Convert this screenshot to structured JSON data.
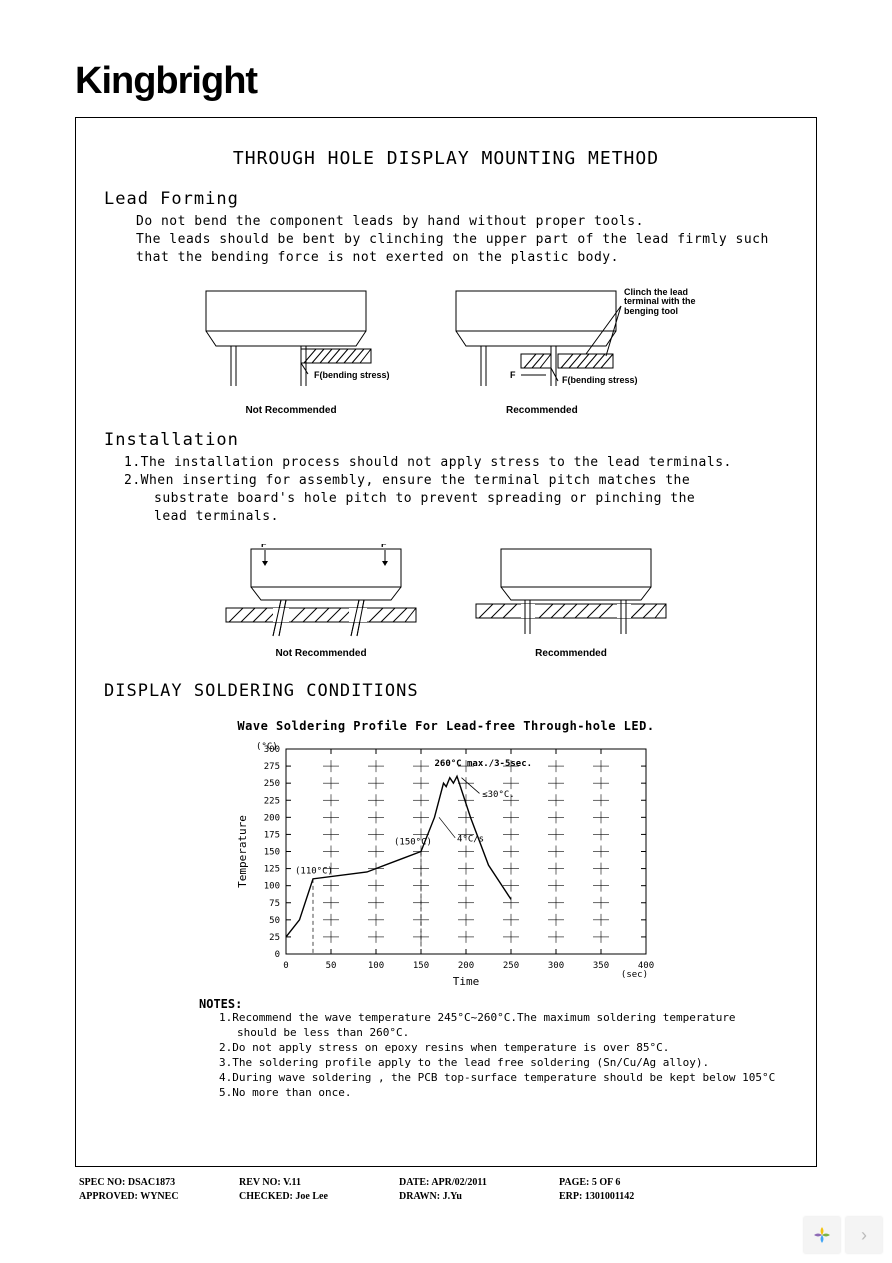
{
  "brand": "Kingbright",
  "title": "THROUGH HOLE DISPLAY MOUNTING METHOD",
  "lead_forming": {
    "heading": "Lead Forming",
    "p1": "Do not bend the component leads by hand without proper tools.",
    "p2": "The leads should be bent by clinching the upper part of the lead firmly such that the bending force is not exerted on the plastic body."
  },
  "diagrams": {
    "not_recommended": "Not Recommended",
    "recommended": "Recommended",
    "f_bending_stress": "F(bending stress)",
    "f_label": "F",
    "clinch_note": "Clinch the lead terminal with the benging tool"
  },
  "installation": {
    "heading": "Installation",
    "item1": "1.The installation process should not apply stress to the lead terminals.",
    "item2a": "2.When inserting for assembly, ensure the terminal pitch matches the",
    "item2b": "substrate board's  hole pitch to prevent spreading or pinching the",
    "item2c": "lead terminals."
  },
  "soldering": {
    "heading": "DISPLAY SOLDERING CONDITIONS",
    "chart_title": "Wave Soldering Profile For Lead-free Through-hole LED.",
    "chart": {
      "y_label": "Temperature",
      "y_unit": "(°C)",
      "x_label": "Time",
      "x_unit": "(sec)",
      "y_min": 0,
      "y_max": 300,
      "y_step": 25,
      "x_min": 0,
      "x_max": 400,
      "x_step": 50,
      "annotations": {
        "peak": "260°C max./3-5sec.",
        "t30": "≤30°C.",
        "t150": "(150°C)",
        "t110": "(110°C)",
        "rate": "4°C/s"
      },
      "grid_color": "#000000",
      "line_color": "#000000",
      "background": "#ffffff",
      "profile_points": [
        [
          0,
          25
        ],
        [
          15,
          50
        ],
        [
          30,
          110
        ],
        [
          90,
          120
        ],
        [
          130,
          140
        ],
        [
          150,
          150
        ],
        [
          165,
          200
        ],
        [
          175,
          250
        ],
        [
          178,
          245
        ],
        [
          182,
          258
        ],
        [
          186,
          250
        ],
        [
          190,
          260
        ],
        [
          205,
          200
        ],
        [
          225,
          130
        ],
        [
          250,
          80
        ]
      ]
    },
    "notes_head": "NOTES:",
    "notes": [
      "1.Recommend the wave temperature 245°C~260°C.The maximum soldering temperature",
      "should be less than 260°C.",
      "2.Do not apply stress on epoxy resins when temperature is over 85°C.",
      "3.The soldering profile apply to the lead free soldering (Sn/Cu/Ag alloy).",
      "4.During wave soldering , the PCB top-surface temperature should be kept below 105°C",
      "5.No more than once."
    ]
  },
  "footer": {
    "spec_no": "SPEC NO: DSAC1873",
    "rev_no": "REV NO: V.11",
    "date": "DATE: APR/02/2011",
    "page": "PAGE: 5 OF 6",
    "approved": "APPROVED: WYNEC",
    "checked": "CHECKED: Joe Lee",
    "drawn": "DRAWN: J.Yu",
    "erp": "ERP: 1301001142"
  },
  "colors": {
    "text": "#000000",
    "hatch": "#555555",
    "icon_yellow": "#f4c20d",
    "icon_green": "#7cb342",
    "icon_blue": "#42a5f5",
    "icon_purple": "#8e6bb5"
  }
}
